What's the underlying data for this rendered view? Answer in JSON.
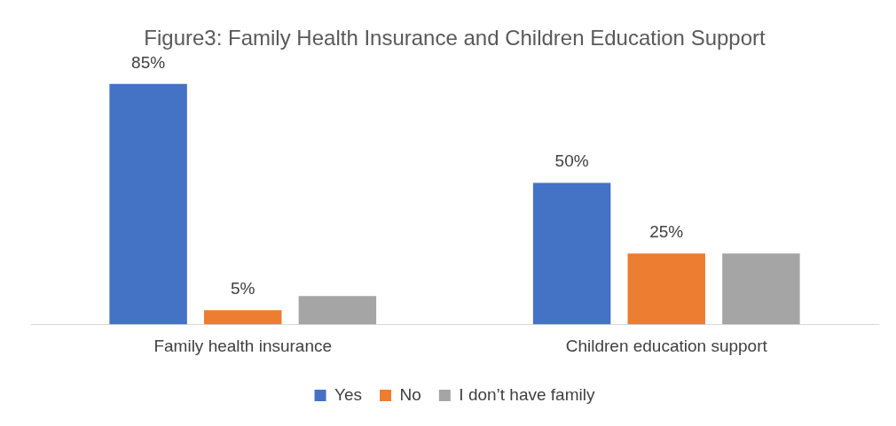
{
  "chart_data": {
    "type": "bar",
    "title": "Figure3: Family Health Insurance and Children Education Support",
    "categories": [
      "Family health insurance",
      "Children education support"
    ],
    "series": [
      {
        "name": "Yes",
        "color": "#4472c4",
        "values": [
          85,
          50
        ],
        "value_labels": [
          "85%",
          "50%"
        ]
      },
      {
        "name": "No",
        "color": "#ed7d31",
        "values": [
          5,
          25
        ],
        "value_labels": [
          "5%",
          "25%"
        ]
      },
      {
        "name": "I don’t have family",
        "color": "#a5a5a5",
        "values": [
          10,
          25
        ],
        "value_labels": [
          null,
          null
        ]
      }
    ],
    "legend": "bottom",
    "grid": false
  }
}
